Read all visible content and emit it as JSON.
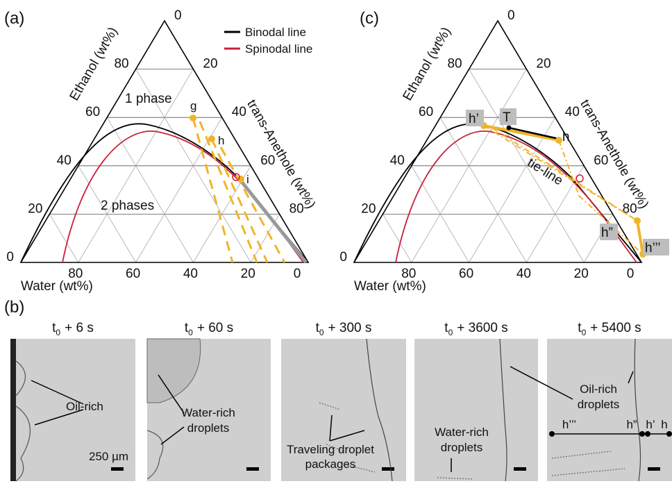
{
  "panel_labels": {
    "a": "(a)",
    "b": "(b)",
    "c": "(c)"
  },
  "diagrams": [
    {
      "axis_titles": {
        "left": "Ethanol (wt%)",
        "right": "trans-Anethole (wt%)",
        "bottom": "Water (wt%)"
      },
      "left_ticks": [
        "0",
        "20",
        "40",
        "60",
        "80"
      ],
      "right_ticks": [
        "0",
        "20",
        "40",
        "60",
        "80"
      ],
      "bottom_ticks": [
        "80",
        "60",
        "40",
        "20",
        "0"
      ],
      "annotations": [
        "1 phase",
        "2 phases",
        "g",
        "h",
        "i"
      ]
    },
    {
      "axis_titles": {
        "left": "Ethanol (wt%)",
        "right": "trans-Anethole (wt%)",
        "bottom": "Water (wt%)"
      },
      "left_ticks": [
        "0",
        "20",
        "40",
        "60",
        "80"
      ],
      "right_ticks": [
        "0",
        "20",
        "40",
        "60",
        "80"
      ],
      "bottom_ticks": [
        "80",
        "60",
        "40",
        "20",
        "0"
      ],
      "annotations": [
        "h’",
        "T",
        "h",
        "tie-line",
        "h”",
        "h’’’"
      ]
    }
  ],
  "legend": [
    "Binodal line",
    "Spinodal line"
  ],
  "images": [
    {
      "time": {
        "t": "t",
        "sub": "0",
        "rest": "+ 6 s"
      },
      "labels": [
        "Oil-rich"
      ],
      "scale": "250 µm"
    },
    {
      "time": {
        "t": "t",
        "sub": "0",
        "rest": "+ 60 s"
      },
      "labels": [
        "Water-rich",
        "droplets"
      ]
    },
    {
      "time": {
        "t": "t",
        "sub": "0",
        "rest": "+ 300 s"
      },
      "labels": [
        "Traveling droplet",
        "packages"
      ]
    },
    {
      "time": {
        "t": "t",
        "sub": "0",
        "rest": "+ 3600 s"
      },
      "labels": [
        "Water-rich",
        "droplets"
      ]
    },
    {
      "time": {
        "t": "t",
        "sub": "0",
        "rest": "+ 5400 s"
      },
      "labels": [
        "Oil-rich",
        "droplets"
      ],
      "points": [
        "h’’’",
        "h”",
        "h’",
        "h"
      ]
    }
  ]
}
